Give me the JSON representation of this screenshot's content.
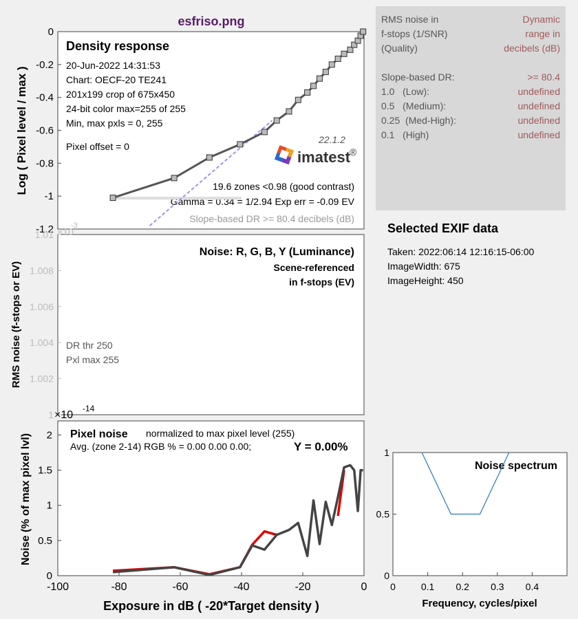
{
  "figure_title": "esfriso.png",
  "info_panel": {
    "header_left": [
      "RMS noise in",
      "f-stops (1/SNR)",
      "(Quality)"
    ],
    "header_right": [
      "Dynamic",
      "range in",
      "decibels (dB)"
    ],
    "rows": [
      {
        "label": "Slope-based DR:",
        "value": ">= 80.4"
      },
      {
        "label": "1.0   (Low):",
        "value": "undefined"
      },
      {
        "label": "0.5   (Medium):",
        "value": "undefined"
      },
      {
        "label": "0.25  (Med-High):",
        "value": "undefined"
      },
      {
        "label": "0.1   (High)",
        "value": "undefined"
      }
    ],
    "colors": {
      "label": "#555555",
      "value": "#a05a5a",
      "background": "#d8d8d8"
    }
  },
  "exif": {
    "title": "Selected EXIF data",
    "lines": [
      "Taken: 2022:06:14 12:16:15-06:00",
      "ImageWidth:  675",
      "ImageHeight:  450"
    ]
  },
  "chart_data": [
    {
      "type": "line",
      "id": "density-response",
      "title": "Density response",
      "ylabel": "Log ( Pixel level / max )",
      "xlim": [
        -100,
        0
      ],
      "ylim": [
        -1.2,
        0
      ],
      "yticks": [
        0,
        -0.2,
        -0.4,
        -0.6,
        -0.8,
        -1,
        -1.2
      ],
      "ytick_labels": [
        "0",
        "-0.2",
        "-0.4",
        "-0.6",
        "-0.8",
        "-1",
        "-1.2"
      ],
      "info_lines": [
        "20-Jun-2022 14:31:53",
        "Chart: OECF-20  TE241",
        "201x199 crop of 675x450",
        "24-bit color  max=255 of 255",
        "Min, max pxls = 0, 255"
      ],
      "pixel_offset": "Pixel offset = 0",
      "version": "22.1.2",
      "logo_text": "imatest",
      "logo_mark": "®",
      "stats_lines": [
        "19.6 zones <0.98 (good contrast)",
        "Gamma = 0.34 = 1/2.94   Exp err = -0.09 EV"
      ],
      "slope_dr_text": "Slope-based DR >= 80.4 decibels (dB)",
      "series": [
        {
          "x": [
            -82,
            -62,
            -50.5,
            -40.5,
            -32.5,
            -28.5,
            -24.5,
            -21.5,
            -18.5,
            -16.5,
            -14.5,
            -12.5,
            -10.5,
            -8.5,
            -6.5,
            -4.5,
            -3.2,
            -2.0,
            -1.1,
            -0.3
          ],
          "y": [
            -1.01,
            -0.89,
            -0.765,
            -0.685,
            -0.61,
            -0.54,
            -0.485,
            -0.415,
            -0.37,
            -0.33,
            -0.285,
            -0.245,
            -0.2,
            -0.165,
            -0.135,
            -0.11,
            -0.08,
            -0.055,
            -0.025,
            0
          ]
        }
      ],
      "slope_line": {
        "x": [
          -70,
          -30
        ],
        "y": [
          -1.18,
          -0.54
        ]
      },
      "colors": {
        "curve": "#555555",
        "marker_fill": "#bbbbbb",
        "slope": "#9999ee"
      }
    },
    {
      "type": "line",
      "id": "rms-noise",
      "title": "Noise: R, G, B, Y (Luminance)",
      "subtitle_lines": [
        "Scene-referenced",
        "in f-stops (EV)"
      ],
      "ylabel": "RMS noise (f-stops or EV)",
      "ytick_labels": [
        "1",
        "1.002",
        "1.004",
        "1.006",
        "1.008",
        "1.01"
      ],
      "top_exponent_base": "×10",
      "top_exponent_power": "-3",
      "bottom_exponent_base": "×10",
      "bottom_exponent_power": "-14",
      "note_lines": [
        "DR thr 250",
        "Pxl max 255"
      ]
    },
    {
      "type": "line",
      "id": "pixel-noise",
      "title": "Pixel noise",
      "title_note": "normalized to max pixel level (255)",
      "avg_text": "Avg. (zone 2-14) RGB % = 0.00  0.00  0.00;",
      "y_text": "Y = 0.00%",
      "xlabel": "Exposure in dB ( -20*Target density )",
      "ylabel": "Noise (% of max pixel lvl)",
      "xlim": [
        -100,
        0
      ],
      "ylim": [
        0,
        2.2
      ],
      "xticks": [
        -100,
        -80,
        -60,
        -40,
        -20,
        0
      ],
      "xtick_labels": [
        "-100",
        "-80",
        "-60",
        "-40",
        "-20",
        "0"
      ],
      "yticks": [
        0,
        0.5,
        1,
        1.5,
        2
      ],
      "ytick_labels": [
        "0",
        "0.5",
        "1",
        "1.5",
        "2"
      ],
      "series": [
        {
          "color": "#e00000",
          "x": [
            -82,
            -62,
            -50.5,
            -40.5,
            -36.5,
            -32.5,
            -28.5
          ],
          "y": [
            0.07,
            0.12,
            0.02,
            0.12,
            0.44,
            0.63,
            0.58
          ]
        },
        {
          "color": "#e00000",
          "x": [
            -8.5,
            -6.5
          ],
          "y": [
            0.85,
            1.5
          ]
        },
        {
          "color": "#444444",
          "x": [
            -82,
            -62,
            -50.5,
            -40.5,
            -36.5,
            -32.5,
            -28.5,
            -24.5,
            -21.5,
            -18.5,
            -16.5,
            -14.5,
            -12.5,
            -10.5,
            -8.5,
            -6.5,
            -4.5,
            -3.2,
            -2.0,
            -1.1,
            -0.3
          ],
          "y": [
            0.05,
            0.12,
            0.01,
            0.12,
            0.43,
            0.37,
            0.58,
            0.65,
            0.75,
            0.28,
            1.07,
            0.45,
            1.05,
            0.72,
            1.12,
            1.54,
            1.57,
            1.5,
            0.92,
            1.5,
            1.5
          ]
        }
      ]
    },
    {
      "type": "line",
      "id": "noise-spectrum",
      "title": "Noise spectrum",
      "xlabel": "Frequency, cycles/pixel",
      "xlim": [
        0,
        0.5
      ],
      "ylim": [
        0,
        1
      ],
      "xticks": [
        0,
        0.1,
        0.2,
        0.3,
        0.4
      ],
      "xtick_labels": [
        "0",
        "0.1",
        "0.2",
        "0.3",
        "0.4"
      ],
      "yticks": [
        0,
        0.5,
        1
      ],
      "ytick_labels": [
        "0",
        "0.5",
        "1"
      ],
      "series": [
        {
          "color": "#2a7ab8",
          "x": [
            0.0833,
            0.1667,
            0.25,
            0.3333
          ],
          "y": [
            1.0,
            0.5,
            0.5,
            1.0
          ]
        }
      ]
    }
  ]
}
